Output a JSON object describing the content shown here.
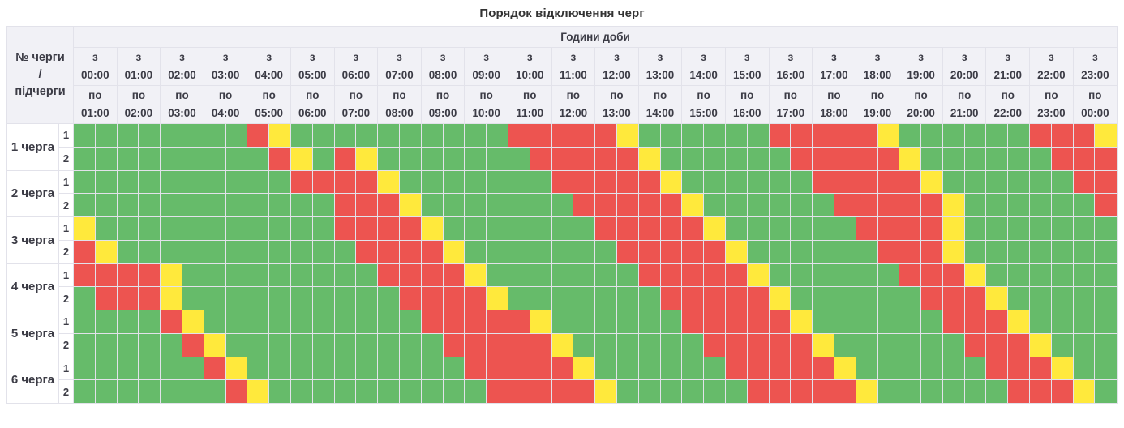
{
  "title": "Порядок відключення черг",
  "table": {
    "corner_label_lines": [
      "№ черги",
      "/",
      "підчерги"
    ],
    "hours_group_label": "Години доби",
    "from_prefix": "з",
    "to_prefix": "по",
    "hours_from": [
      "00:00",
      "01:00",
      "02:00",
      "03:00",
      "04:00",
      "05:00",
      "06:00",
      "07:00",
      "08:00",
      "09:00",
      "10:00",
      "11:00",
      "12:00",
      "13:00",
      "14:00",
      "15:00",
      "16:00",
      "17:00",
      "18:00",
      "19:00",
      "20:00",
      "21:00",
      "22:00",
      "23:00"
    ],
    "hours_to": [
      "01:00",
      "02:00",
      "03:00",
      "04:00",
      "05:00",
      "06:00",
      "07:00",
      "08:00",
      "09:00",
      "10:00",
      "11:00",
      "12:00",
      "13:00",
      "14:00",
      "15:00",
      "16:00",
      "17:00",
      "18:00",
      "19:00",
      "20:00",
      "21:00",
      "22:00",
      "23:00",
      "00:00"
    ]
  },
  "chart_data": {
    "type": "heatmap",
    "title": "Порядок відключення черг",
    "x_label": "Години доби",
    "x_slots_per_row": 48,
    "x_slot_duration_minutes": 30,
    "x_range": [
      "00:00",
      "00:00"
    ],
    "legend_colors": {
      "G": "#66bb6a",
      "R": "#ed5450",
      "Y": "#ffe93c"
    },
    "rows": [
      {
        "queue": "1 черга",
        "subqueue": "1",
        "cells": "GGGGGGGGRYGGGGGGGGGGRRRRRYGGGGGGRRRRRYGGGGGGRRRY"
      },
      {
        "queue": "1 черга",
        "subqueue": "2",
        "cells": "GGGGGGGGGRYGRYGGGGGGGRRRRRYGGGGGGRRRRRYGGGGGGRRR"
      },
      {
        "queue": "2 черга",
        "subqueue": "1",
        "cells": "GGGGGGGGGGRRRRYGGGGGGGRRRRRYGGGGGGRRRRRYGGGGGGRR"
      },
      {
        "queue": "2 черга",
        "subqueue": "2",
        "cells": "GGGGGGGGGGGGRRRYGGGGGGGRRRRRYGGGGGGRRRRRYGGGGGGR"
      },
      {
        "queue": "3 черга",
        "subqueue": "1",
        "cells": "YGGGGGGGGGGGRRRRYGGGGGGGRRRRRYGGGGGGRRRRYGGGGGGG"
      },
      {
        "queue": "3 черга",
        "subqueue": "2",
        "cells": "RYGGGGGGGGGGGRRRRYGGGGGGGRRRRRYGGGGGGRRRYGGGGGGG"
      },
      {
        "queue": "4 черга",
        "subqueue": "1",
        "cells": "RRRRYGGGGGGGGGRRRRYGGGGGGGRRRRRYGGGGGGRRRYGGGGGG"
      },
      {
        "queue": "4 черга",
        "subqueue": "2",
        "cells": "GRRRYGGGGGGGGGGRRRRYGGGGGGGRRRRRYGGGGGGRRRYGGGGG"
      },
      {
        "queue": "5 черга",
        "subqueue": "1",
        "cells": "GGGGRYGGGGGGGGGGRRRRRYGGGGGGRRRRRYGGGGGGRRRYGGGG"
      },
      {
        "queue": "5 черга",
        "subqueue": "2",
        "cells": "GGGGGRYGGGGGGGGGGRRRRRYGGGGGGRRRRRYGGGGGGRRRYGGG"
      },
      {
        "queue": "6 черга",
        "subqueue": "1",
        "cells": "GGGGGGRYGGGGGGGGGGRRRRRYGGGGGGRRRRRYGGGGGGRRRYGG"
      },
      {
        "queue": "6 черга",
        "subqueue": "2",
        "cells": "GGGGGGGRYGGGGGGGGGGRRRRRYGGGGGGRRRRRYGGGGGGRRRYG"
      }
    ]
  }
}
